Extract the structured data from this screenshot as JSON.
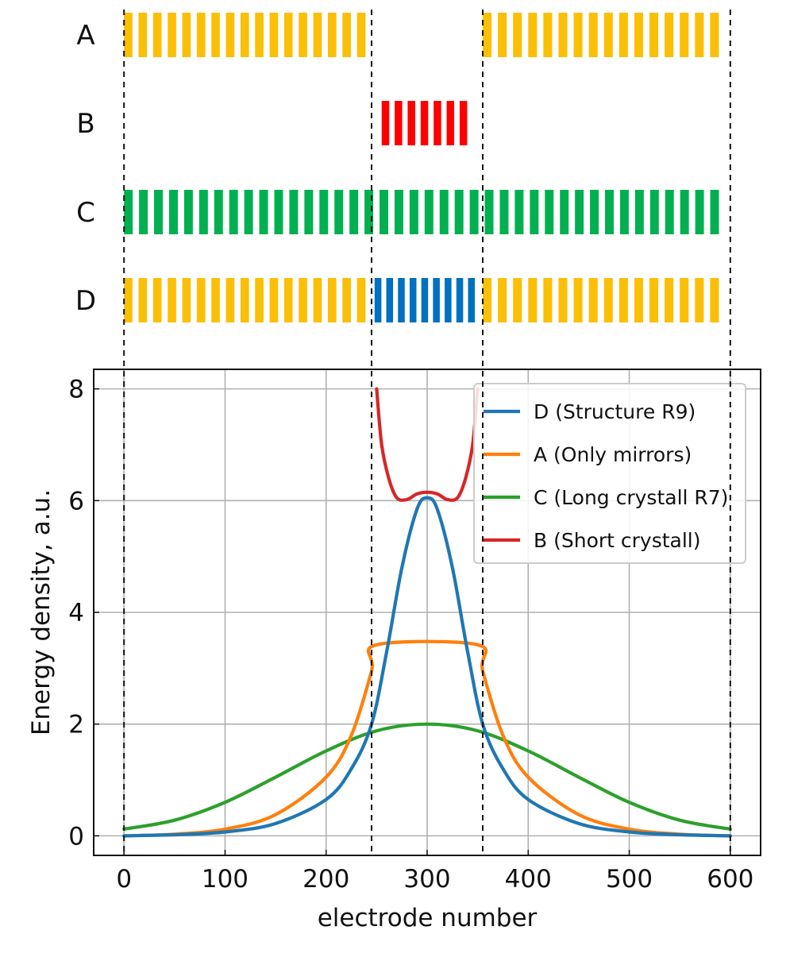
{
  "schematic": {
    "rows": [
      {
        "label": "A",
        "segments": [
          {
            "from": 0,
            "to": 245,
            "color": "#fbbf06",
            "stripes": 17
          },
          {
            "from": 355,
            "to": 595,
            "color": "#fbbf06",
            "stripes": 16
          }
        ]
      },
      {
        "label": "B",
        "segments": [
          {
            "from": 255,
            "to": 345,
            "color": "#fe0000",
            "stripes": 7
          }
        ]
      },
      {
        "label": "C",
        "segments": [
          {
            "from": 0,
            "to": 595,
            "color": "#00b050",
            "stripes": 40
          }
        ]
      },
      {
        "label": "D",
        "segments": [
          {
            "from": 0,
            "to": 245,
            "color": "#fbbf06",
            "stripes": 17
          },
          {
            "from": 248,
            "to": 352,
            "color": "#0070c0",
            "stripes": 9
          },
          {
            "from": 355,
            "to": 595,
            "color": "#fbbf06",
            "stripes": 16
          }
        ]
      }
    ],
    "dashed_guides_x": [
      0,
      245,
      355,
      600
    ]
  },
  "chart_data": {
    "type": "line",
    "title": "",
    "xlabel": "electrode number",
    "ylabel": "Energy density, a.u.",
    "xlim": [
      -30,
      630
    ],
    "ylim": [
      -0.35,
      8.35
    ],
    "xticks": [
      0,
      100,
      200,
      300,
      400,
      500,
      600
    ],
    "yticks": [
      0,
      2,
      4,
      6,
      8
    ],
    "grid": true,
    "legend_position": "top-right",
    "series": [
      {
        "name": "D (Structure R9)",
        "color": "#1f77b4",
        "x": [
          0,
          50,
          100,
          150,
          200,
          225,
          245,
          260,
          275,
          290,
          300,
          310,
          325,
          340,
          355,
          375,
          400,
          450,
          500,
          550,
          600
        ],
        "y": [
          0.0,
          0.02,
          0.07,
          0.22,
          0.65,
          1.2,
          2.0,
          3.3,
          4.8,
          5.85,
          6.05,
          5.85,
          4.8,
          3.3,
          2.0,
          1.2,
          0.65,
          0.22,
          0.07,
          0.02,
          0.0
        ]
      },
      {
        "name": "A (Only mirrors)",
        "color": "#ff7f0e",
        "x": [
          0,
          50,
          100,
          150,
          200,
          225,
          245,
          250,
          350,
          355,
          375,
          400,
          450,
          500,
          550,
          600
        ],
        "y": [
          0.0,
          0.03,
          0.12,
          0.38,
          1.05,
          1.8,
          2.95,
          3.42,
          3.42,
          2.95,
          1.8,
          1.05,
          0.38,
          0.12,
          0.03,
          0.0
        ]
      },
      {
        "name": "C (Long crystall R7)",
        "color": "#2ca02c",
        "x": [
          0,
          50,
          100,
          150,
          200,
          250,
          300,
          350,
          400,
          450,
          500,
          550,
          600
        ],
        "y": [
          0.12,
          0.28,
          0.6,
          1.05,
          1.52,
          1.88,
          2.0,
          1.88,
          1.52,
          1.05,
          0.6,
          0.28,
          0.12
        ]
      },
      {
        "name": "B (Short crystall)",
        "color": "#d62728",
        "x": [
          250,
          255,
          262,
          270,
          280,
          290,
          300,
          310,
          320,
          330,
          338,
          345,
          350
        ],
        "y": [
          8.0,
          7.0,
          6.4,
          6.05,
          6.02,
          6.12,
          6.15,
          6.12,
          6.02,
          6.05,
          6.4,
          7.0,
          8.0
        ]
      }
    ]
  }
}
